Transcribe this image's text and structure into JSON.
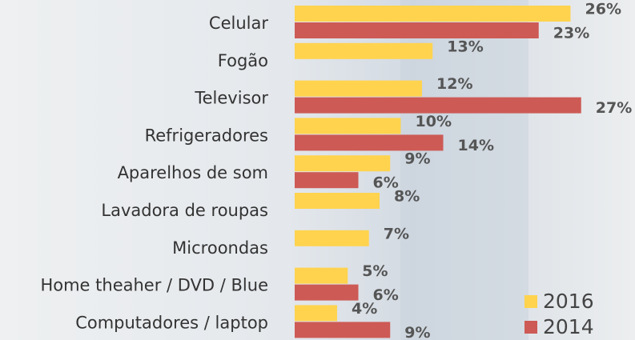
{
  "chart_data": {
    "type": "bar",
    "orientation": "horizontal",
    "categories": [
      "Celular",
      "Fogão",
      "Televisor",
      "Refrigeradores",
      "Aparelhos de som",
      "Lavadora de roupas",
      "Microondas",
      "Home theaher / DVD / Blue",
      "Computadores / laptop"
    ],
    "series": [
      {
        "name": "2016",
        "color": "#ffd34e",
        "values": [
          26,
          13,
          12,
          10,
          9,
          8,
          7,
          5,
          4
        ],
        "value_labels": [
          "26%",
          "13%",
          "12%",
          "10%",
          "9%",
          "8%",
          "7%",
          "5%",
          "4%"
        ]
      },
      {
        "name": "2014",
        "color": "#cd5a55",
        "values": [
          23,
          null,
          27,
          14,
          6,
          null,
          null,
          6,
          9
        ],
        "value_labels": [
          "23%",
          null,
          "27%",
          "14%",
          "6%",
          null,
          null,
          "6%",
          "9%"
        ]
      }
    ],
    "legend": "bottom-right"
  }
}
